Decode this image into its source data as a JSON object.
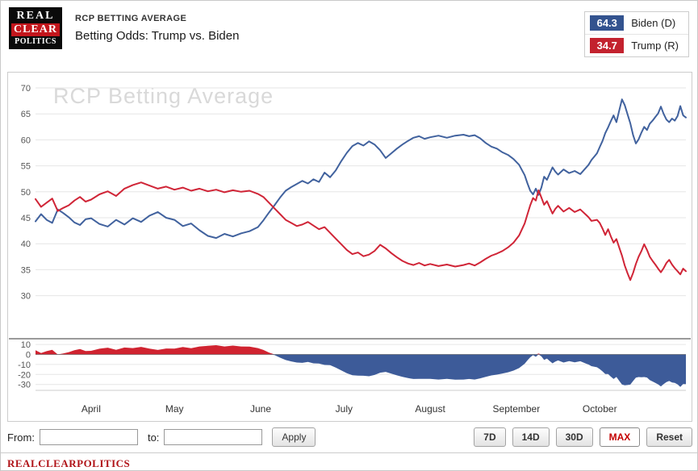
{
  "header": {
    "kicker": "RCP BETTING AVERAGE",
    "title": "Betting Odds: Trump vs. Biden"
  },
  "logo": {
    "line1": "REAL",
    "line2": "CLEAR",
    "line3": "POLITICS"
  },
  "legend": {
    "items": [
      {
        "value": "64.3",
        "label": "Biden (D)",
        "color": "#33538f"
      },
      {
        "value": "34.7",
        "label": "Trump (R)",
        "color": "#c3222e"
      }
    ]
  },
  "chart_data": {
    "type": "line",
    "title": "RCP Betting Average",
    "watermark": "RCP Betting Average",
    "x_note": "day index, 0 = chart start (mid-March), 234 = chart end (early November)",
    "x_domain": [
      0,
      234
    ],
    "x": [
      0,
      2,
      4,
      6,
      8,
      10,
      12,
      14,
      16,
      18,
      20,
      23,
      26,
      29,
      32,
      35,
      38,
      41,
      44,
      47,
      50,
      53,
      56,
      59,
      62,
      65,
      68,
      71,
      74,
      77,
      80,
      82,
      84,
      86,
      88,
      90,
      92,
      94,
      96,
      98,
      100,
      102,
      104,
      106,
      108,
      110,
      112,
      114,
      116,
      118,
      120,
      122,
      124,
      126,
      128,
      130,
      132,
      134,
      136,
      138,
      140,
      142,
      145,
      148,
      151,
      154,
      156,
      158,
      160,
      162,
      164,
      166,
      168,
      170,
      172,
      174,
      176,
      177,
      178,
      179,
      180,
      181,
      182,
      183,
      184,
      185,
      186,
      187,
      188,
      190,
      192,
      194,
      196,
      198,
      199,
      200,
      202,
      203,
      204,
      205,
      206,
      207,
      208,
      209,
      210,
      211,
      212,
      213,
      214,
      215,
      216,
      217,
      218,
      219,
      220,
      221,
      222,
      223,
      224,
      225,
      226,
      227,
      228,
      229,
      230,
      231,
      232,
      233,
      234
    ],
    "series": [
      {
        "name": "Biden (D)",
        "color": "#41629e",
        "values": [
          44.3,
          45.7,
          44.6,
          44.0,
          46.6,
          45.9,
          45.1,
          44.1,
          43.6,
          44.7,
          44.9,
          43.8,
          43.3,
          44.6,
          43.7,
          44.9,
          44.2,
          45.4,
          46.1,
          45.0,
          44.6,
          43.4,
          43.9,
          42.6,
          41.5,
          41.1,
          41.9,
          41.4,
          42.0,
          42.4,
          43.2,
          44.5,
          46.0,
          47.4,
          48.9,
          50.2,
          50.9,
          51.5,
          52.1,
          51.6,
          52.4,
          51.9,
          53.7,
          52.8,
          54.1,
          55.9,
          57.5,
          58.8,
          59.4,
          58.9,
          59.7,
          59.1,
          58.0,
          56.5,
          57.4,
          58.3,
          59.1,
          59.8,
          60.4,
          60.7,
          60.2,
          60.5,
          60.8,
          60.4,
          60.8,
          61.0,
          60.7,
          60.9,
          60.3,
          59.4,
          58.7,
          58.3,
          57.6,
          57.1,
          56.3,
          55.2,
          53.2,
          51.6,
          50.2,
          49.5,
          50.6,
          49.4,
          50.8,
          52.9,
          52.3,
          53.5,
          54.7,
          53.9,
          53.3,
          54.3,
          53.6,
          54.0,
          53.4,
          54.6,
          55.2,
          56.1,
          57.4,
          58.6,
          59.8,
          61.3,
          62.4,
          63.6,
          64.7,
          63.4,
          65.6,
          67.8,
          66.7,
          64.9,
          63.2,
          60.9,
          59.3,
          60.1,
          61.4,
          62.5,
          61.9,
          63.1,
          63.7,
          64.4,
          65.1,
          66.4,
          65.0,
          63.9,
          63.4,
          64.1,
          63.7,
          64.6,
          66.5,
          64.7,
          64.3
        ]
      },
      {
        "name": "Trump (R)",
        "color": "#d02537",
        "values": [
          48.6,
          47.1,
          47.9,
          48.7,
          46.3,
          46.9,
          47.4,
          48.3,
          49.0,
          48.1,
          48.5,
          49.5,
          50.1,
          49.2,
          50.6,
          51.3,
          51.8,
          51.2,
          50.6,
          51.0,
          50.4,
          50.8,
          50.2,
          50.6,
          50.1,
          50.4,
          49.9,
          50.3,
          50.0,
          50.2,
          49.6,
          49.0,
          47.9,
          46.8,
          45.7,
          44.6,
          44.0,
          43.4,
          43.7,
          44.2,
          43.5,
          42.8,
          43.2,
          42.1,
          41.0,
          39.9,
          38.8,
          38.0,
          38.3,
          37.6,
          37.9,
          38.6,
          39.8,
          39.1,
          38.2,
          37.4,
          36.7,
          36.2,
          35.9,
          36.3,
          35.8,
          36.1,
          35.7,
          36.0,
          35.6,
          35.9,
          36.2,
          35.8,
          36.4,
          37.1,
          37.7,
          38.1,
          38.6,
          39.3,
          40.2,
          41.6,
          43.9,
          45.7,
          47.4,
          48.8,
          48.3,
          50.3,
          48.9,
          47.5,
          48.2,
          47.0,
          45.8,
          46.7,
          47.3,
          46.2,
          46.9,
          46.1,
          46.6,
          45.6,
          45.1,
          44.4,
          44.6,
          44.0,
          42.9,
          41.7,
          42.8,
          41.4,
          40.2,
          40.9,
          39.3,
          37.7,
          35.8,
          34.3,
          33.0,
          34.4,
          36.1,
          37.5,
          38.6,
          39.9,
          38.8,
          37.5,
          36.7,
          36.0,
          35.2,
          34.5,
          35.3,
          36.3,
          36.9,
          36.0,
          35.3,
          34.7,
          34.1,
          35.2,
          34.7
        ]
      }
    ],
    "y_axis": {
      "ticks": [
        70,
        65,
        60,
        55,
        50,
        45,
        40,
        35,
        30
      ],
      "range": [
        30,
        70
      ],
      "grid": true
    },
    "month_ticks": [
      {
        "label": "April",
        "day": 20
      },
      {
        "label": "May",
        "day": 50
      },
      {
        "label": "June",
        "day": 81
      },
      {
        "label": "July",
        "day": 111
      },
      {
        "label": "August",
        "day": 142
      },
      {
        "label": "September",
        "day": 173
      },
      {
        "label": "October",
        "day": 203
      }
    ],
    "spread_panel": {
      "formula": "Trump - Biden",
      "ticks": [
        10,
        0,
        -10,
        -20,
        -30
      ],
      "range": [
        -36,
        15
      ],
      "positive_color": "#d02330",
      "negative_color": "#3d5b99"
    },
    "legend_position": "top-right"
  },
  "controls": {
    "from_label": "From:",
    "to_label": "to:",
    "from_value": "",
    "to_value": "",
    "apply_label": "Apply",
    "range_buttons": [
      {
        "label": "7D",
        "active": false
      },
      {
        "label": "14D",
        "active": false
      },
      {
        "label": "30D",
        "active": false
      },
      {
        "label": "MAX",
        "active": true
      },
      {
        "label": "Reset",
        "active": false
      }
    ]
  },
  "footer": {
    "brand": "REALCLEARPOLITICS"
  }
}
